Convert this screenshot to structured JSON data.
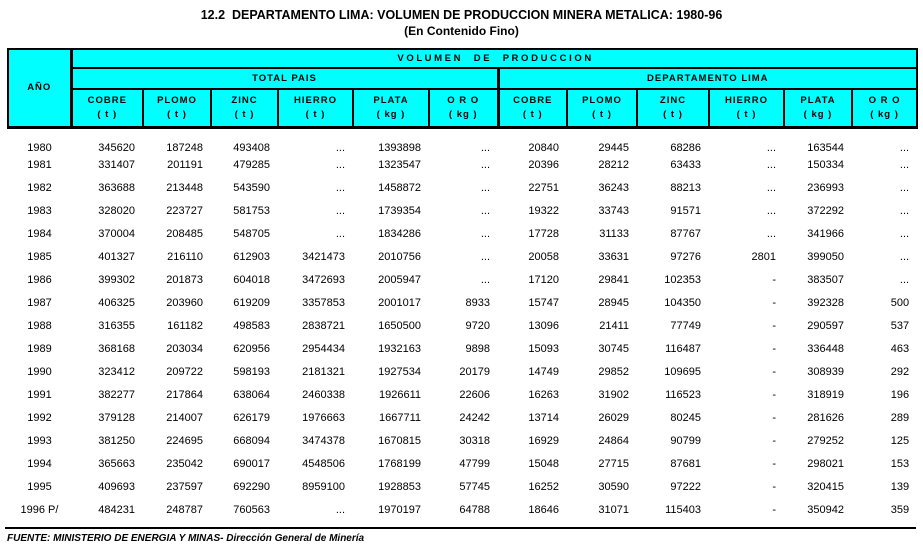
{
  "title": "12.2  DEPARTAMENTO LIMA: VOLUMEN DE PRODUCCION MINERA METALICA: 1980-96",
  "subtitle": "(En Contenido Fino)",
  "source": "FUENTE: MINISTERIO DE ENERGIA Y MINAS- Dirección General de Minería",
  "colors": {
    "header_bg": "#00ffff",
    "border": "#000000",
    "text": "#000000"
  },
  "table": {
    "year_header": "AÑO",
    "volume_header": "V O L U M E N     D E     P R O D U C C I O N",
    "groups": [
      "TOTAL PAIS",
      "DEPARTAMENTO LIMA"
    ],
    "columns": [
      {
        "label": "COBRE",
        "unit": "( t )"
      },
      {
        "label": "PLOMO",
        "unit": "( t )"
      },
      {
        "label": "ZINC",
        "unit": "( t )"
      },
      {
        "label": "HIERRO",
        "unit": "( t )"
      },
      {
        "label": "PLATA",
        "unit": "( kg )"
      },
      {
        "label": "O R O",
        "unit": "( kg )"
      },
      {
        "label": "COBRE",
        "unit": "( t )"
      },
      {
        "label": "PLOMO",
        "unit": "( t )"
      },
      {
        "label": "ZINC",
        "unit": "( t )"
      },
      {
        "label": "HIERRO",
        "unit": "( t )"
      },
      {
        "label": "PLATA",
        "unit": "( kg )"
      },
      {
        "label": "O R O",
        "unit": "( kg )"
      }
    ],
    "rows": [
      [
        "1980",
        "345620",
        "187248",
        "493408",
        "...",
        "1393898",
        "...",
        "20840",
        "29445",
        "68286",
        "...",
        "163544",
        "..."
      ],
      [
        "1981",
        "331407",
        "201191",
        "479285",
        "...",
        "1323547",
        "...",
        "20396",
        "28212",
        "63433",
        "...",
        "150334",
        "..."
      ],
      [
        "1982",
        "363688",
        "213448",
        "543590",
        "...",
        "1458872",
        "...",
        "22751",
        "36243",
        "88213",
        "...",
        "236993",
        "..."
      ],
      [
        "1983",
        "328020",
        "223727",
        "581753",
        "...",
        "1739354",
        "...",
        "19322",
        "33743",
        "91571",
        "...",
        "372292",
        "..."
      ],
      [
        "1984",
        "370004",
        "208485",
        "548705",
        "...",
        "1834286",
        "...",
        "17728",
        "31133",
        "87767",
        "...",
        "341966",
        "..."
      ],
      [
        "1985",
        "401327",
        "216110",
        "612903",
        "3421473",
        "2010756",
        "...",
        "20058",
        "33631",
        "97276",
        "2801",
        "399050",
        "..."
      ],
      [
        "1986",
        "399302",
        "201873",
        "604018",
        "3472693",
        "2005947",
        "...",
        "17120",
        "29841",
        "102353",
        "-",
        "383507",
        "..."
      ],
      [
        "1987",
        "406325",
        "203960",
        "619209",
        "3357853",
        "2001017",
        "8933",
        "15747",
        "28945",
        "104350",
        "-",
        "392328",
        "500"
      ],
      [
        "1988",
        "316355",
        "161182",
        "498583",
        "2838721",
        "1650500",
        "9720",
        "13096",
        "21411",
        "77749",
        "-",
        "290597",
        "537"
      ],
      [
        "1989",
        "368168",
        "203034",
        "620956",
        "2954434",
        "1932163",
        "9898",
        "15093",
        "30745",
        "116487",
        "-",
        "336448",
        "463"
      ],
      [
        "1990",
        "323412",
        "209722",
        "598193",
        "2181321",
        "1927534",
        "20179",
        "14749",
        "29852",
        "109695",
        "-",
        "308939",
        "292"
      ],
      [
        "1991",
        "382277",
        "217864",
        "638064",
        "2460338",
        "1926611",
        "22606",
        "16263",
        "31902",
        "116523",
        "-",
        "318919",
        "196"
      ],
      [
        "1992",
        "379128",
        "214007",
        "626179",
        "1976663",
        "1667711",
        "24242",
        "13714",
        "26029",
        "80245",
        "-",
        "281626",
        "289"
      ],
      [
        "1993",
        "381250",
        "224695",
        "668094",
        "3474378",
        "1670815",
        "30318",
        "16929",
        "24864",
        "90799",
        "-",
        "279252",
        "125"
      ],
      [
        "1994",
        "365663",
        "235042",
        "690017",
        "4548506",
        "1768199",
        "47799",
        "15048",
        "27715",
        "87681",
        "-",
        "298021",
        "153"
      ],
      [
        "1995",
        "409693",
        "237597",
        "692290",
        "8959100",
        "1928853",
        "57745",
        "16252",
        "30590",
        "97222",
        "-",
        "320415",
        "139"
      ],
      [
        "1996 P/",
        "484231",
        "248787",
        "760563",
        "...",
        "1970197",
        "64788",
        "18646",
        "31071",
        "115403",
        "-",
        "350942",
        "359"
      ]
    ]
  }
}
